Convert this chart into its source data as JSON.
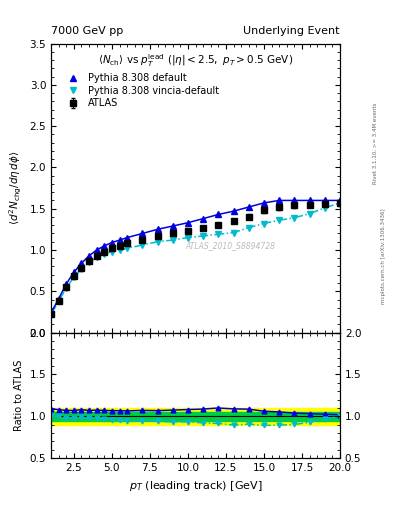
{
  "title_left": "7000 GeV pp",
  "title_right": "Underlying Event",
  "subtitle": "<N_{ch}> vs p_{T}^{lead} (|#eta| < 2.5, p_{T} > 0.5 GeV)",
  "xlabel": "p_{T} (leading track) [GeV]",
  "ylabel_main": "(d^2 N_{chg}/d#eta d#phi)",
  "ylabel_ratio": "Ratio to ATLAS",
  "watermark": "ATLAS_2010_S8894728",
  "right_label_top": "Rivet 3.1.10, >= 3.4M events",
  "right_label_bot": "mcplots.cern.ch [arXiv:1306.3436]",
  "xlim": [
    1,
    20
  ],
  "ylim_main": [
    0,
    3.5
  ],
  "ylim_ratio": [
    0.5,
    2.0
  ],
  "atlas_x": [
    1.0,
    1.5,
    2.0,
    2.5,
    3.0,
    3.5,
    4.0,
    4.5,
    5.0,
    5.5,
    6.0,
    7.0,
    8.0,
    9.0,
    10.0,
    11.0,
    12.0,
    13.0,
    14.0,
    15.0,
    16.0,
    17.0,
    18.0,
    19.0,
    20.0
  ],
  "atlas_y": [
    0.22,
    0.38,
    0.55,
    0.68,
    0.78,
    0.87,
    0.93,
    0.98,
    1.02,
    1.05,
    1.08,
    1.12,
    1.17,
    1.2,
    1.23,
    1.27,
    1.3,
    1.35,
    1.4,
    1.48,
    1.52,
    1.54,
    1.55,
    1.56,
    1.57
  ],
  "atlas_yerr": [
    0.015,
    0.018,
    0.018,
    0.018,
    0.018,
    0.018,
    0.018,
    0.018,
    0.018,
    0.018,
    0.02,
    0.02,
    0.02,
    0.02,
    0.022,
    0.022,
    0.025,
    0.025,
    0.03,
    0.03,
    0.03,
    0.03,
    0.03,
    0.03,
    0.035
  ],
  "atlas_xerr": 0.25,
  "py_def_x": [
    1.0,
    1.5,
    2.0,
    2.5,
    3.0,
    3.5,
    4.0,
    4.5,
    5.0,
    5.5,
    6.0,
    7.0,
    8.0,
    9.0,
    10.0,
    11.0,
    12.0,
    13.0,
    14.0,
    15.0,
    16.0,
    17.0,
    18.0,
    19.0,
    20.0
  ],
  "py_def_y": [
    0.24,
    0.41,
    0.59,
    0.73,
    0.84,
    0.93,
    1.0,
    1.05,
    1.09,
    1.12,
    1.15,
    1.2,
    1.25,
    1.29,
    1.33,
    1.38,
    1.43,
    1.47,
    1.52,
    1.57,
    1.6,
    1.6,
    1.6,
    1.6,
    1.6
  ],
  "py_vin_x": [
    1.0,
    1.5,
    2.0,
    2.5,
    3.0,
    3.5,
    4.0,
    4.5,
    5.0,
    5.5,
    6.0,
    7.0,
    8.0,
    9.0,
    10.0,
    11.0,
    12.0,
    13.0,
    14.0,
    15.0,
    16.0,
    17.0,
    18.0,
    19.0,
    20.0
  ],
  "py_vin_y": [
    0.22,
    0.38,
    0.54,
    0.67,
    0.77,
    0.85,
    0.91,
    0.95,
    0.98,
    1.0,
    1.02,
    1.06,
    1.1,
    1.12,
    1.15,
    1.17,
    1.19,
    1.21,
    1.27,
    1.32,
    1.36,
    1.39,
    1.44,
    1.51,
    1.57
  ],
  "atlas_color": "#000000",
  "py_def_color": "#0000dd",
  "py_vin_color": "#00bbcc",
  "band_yellow": "#ffff00",
  "band_green": "#00cc44",
  "ratio_def_y": [
    1.09,
    1.08,
    1.07,
    1.07,
    1.08,
    1.07,
    1.075,
    1.07,
    1.068,
    1.067,
    1.065,
    1.071,
    1.068,
    1.075,
    1.081,
    1.087,
    1.1,
    1.089,
    1.086,
    1.061,
    1.053,
    1.039,
    1.032,
    1.026,
    1.019
  ],
  "ratio_vin_y": [
    1.0,
    1.0,
    0.982,
    0.985,
    0.987,
    0.977,
    0.978,
    0.969,
    0.961,
    0.952,
    0.944,
    0.946,
    0.94,
    0.933,
    0.935,
    0.922,
    0.915,
    0.896,
    0.907,
    0.892,
    0.895,
    0.903,
    0.929,
    0.968,
    1.0
  ]
}
